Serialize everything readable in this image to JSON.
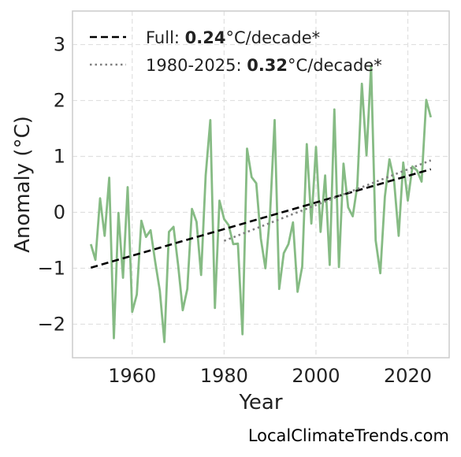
{
  "chart_data": {
    "type": "line",
    "xlabel": "Year",
    "ylabel": "Anomaly (°C)",
    "xlim": [
      1947,
      2029
    ],
    "ylim": [
      -2.6,
      3.6
    ],
    "x_ticks": [
      1960,
      1980,
      2000,
      2020
    ],
    "y_ticks": [
      -2,
      -1,
      0,
      1,
      2,
      3
    ],
    "y_tick_labels": [
      "−2",
      "−1",
      "0",
      "1",
      "2",
      "3"
    ],
    "grid": true,
    "legend_position": "top-left",
    "series": [
      {
        "kind": "data",
        "color": "#86bb84",
        "x": [
          1951,
          1952,
          1953,
          1954,
          1955,
          1956,
          1957,
          1958,
          1959,
          1960,
          1961,
          1962,
          1963,
          1964,
          1965,
          1966,
          1967,
          1968,
          1969,
          1970,
          1971,
          1972,
          1973,
          1974,
          1975,
          1976,
          1977,
          1978,
          1979,
          1980,
          1981,
          1982,
          1983,
          1984,
          1985,
          1986,
          1987,
          1988,
          1989,
          1990,
          1991,
          1992,
          1993,
          1994,
          1995,
          1996,
          1997,
          1998,
          1999,
          2000,
          2001,
          2002,
          2003,
          2004,
          2005,
          2006,
          2007,
          2008,
          2009,
          2010,
          2011,
          2012,
          2013,
          2014,
          2015,
          2016,
          2017,
          2018,
          2019,
          2020,
          2021,
          2022,
          2023,
          2024,
          2025
        ],
        "y": [
          -0.57,
          -0.85,
          0.25,
          -0.42,
          0.62,
          -2.25,
          -0.01,
          -1.17,
          0.45,
          -1.78,
          -1.47,
          -0.15,
          -0.44,
          -0.32,
          -0.88,
          -1.4,
          -2.32,
          -0.35,
          -0.26,
          -0.95,
          -1.75,
          -1.37,
          0.06,
          -0.17,
          -1.12,
          0.66,
          1.65,
          -1.71,
          0.21,
          -0.12,
          -0.23,
          -0.57,
          -0.56,
          -2.18,
          1.14,
          0.63,
          0.52,
          -0.47,
          -1.0,
          -0.03,
          1.65,
          -1.37,
          -0.73,
          -0.57,
          -0.18,
          -1.42,
          -0.97,
          1.22,
          -0.2,
          1.17,
          -0.35,
          0.66,
          -0.94,
          1.84,
          -0.98,
          0.87,
          0.09,
          -0.07,
          0.47,
          2.3,
          1.02,
          2.62,
          -0.5,
          -1.09,
          0.28,
          0.95,
          0.58,
          -0.42,
          0.89,
          0.21,
          0.82,
          0.75,
          0.55,
          2.01,
          1.7
        ]
      },
      {
        "kind": "trend",
        "name": "Full",
        "rate": "0.24",
        "unit": "°C/decade*",
        "style": "dashed",
        "color": "#000000",
        "x": [
          1951,
          2025
        ],
        "y": [
          -0.99,
          0.77
        ]
      },
      {
        "kind": "trend",
        "name": "1980-2025",
        "rate": "0.32",
        "unit": "°C/decade*",
        "style": "dotted",
        "color": "#808080",
        "x": [
          1980,
          2025
        ],
        "y": [
          -0.51,
          0.93
        ]
      }
    ]
  },
  "legend": {
    "full_prefix": "Full: ",
    "full_rate": "0.24",
    "full_unit": "°C/decade*",
    "recent_prefix": "1980-2025: ",
    "recent_rate": "0.32",
    "recent_unit": "°C/decade*"
  },
  "source": "LocalClimateTrends.com"
}
